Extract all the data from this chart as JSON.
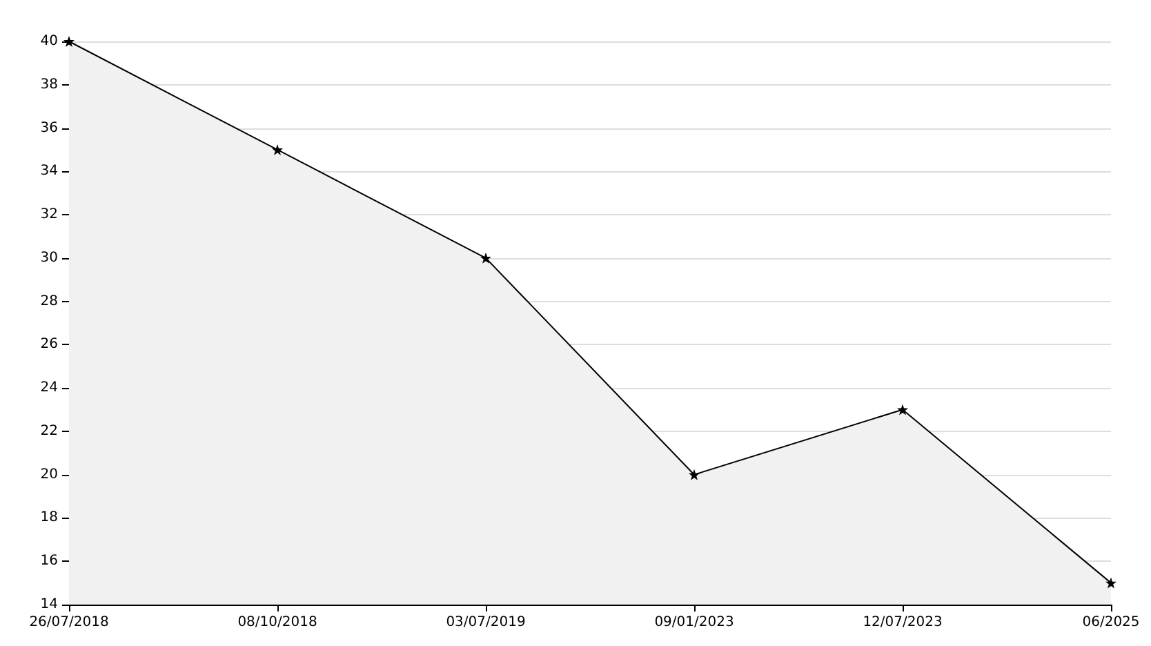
{
  "chart_data": {
    "type": "area",
    "categories": [
      "26/07/2018",
      "08/10/2018",
      "03/07/2019",
      "09/01/2023",
      "12/07/2023",
      "06/2025"
    ],
    "series": [
      {
        "color": "#000000",
        "values": [
          40,
          35,
          30,
          20,
          23,
          15
        ]
      }
    ],
    "ylim": [
      14,
      40
    ],
    "yticks": [
      14,
      16,
      18,
      20,
      22,
      24,
      26,
      28,
      30,
      32,
      34,
      36,
      38,
      40
    ],
    "grid": "y",
    "marker": "star",
    "line_style": "solid"
  }
}
